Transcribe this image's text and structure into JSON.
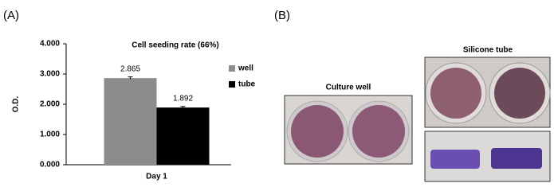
{
  "chart_data": {
    "type": "bar",
    "title": "Cell seeding rate (66%)",
    "ylabel": "O.D.",
    "categories": [
      "Day 1"
    ],
    "series": [
      {
        "name": "well",
        "color": "#8c8c8c",
        "values": [
          2.865
        ],
        "errors": [
          0.04
        ]
      },
      {
        "name": "tube",
        "color": "#000000",
        "values": [
          1.892
        ],
        "errors": [
          0.035
        ]
      }
    ],
    "ylim": [
      0,
      4
    ],
    "yticks": [
      {
        "value": 0,
        "label": "0.000"
      },
      {
        "value": 1,
        "label": "1.000"
      },
      {
        "value": 2,
        "label": "2.000"
      },
      {
        "value": 3,
        "label": "3.000"
      },
      {
        "value": 4,
        "label": "4.000"
      }
    ],
    "legend": "right"
  },
  "panels": {
    "a_label": "(A)",
    "b_label": "(B)",
    "well_photo_label": "Culture well",
    "tube_photo_label": "Silicone tube"
  }
}
